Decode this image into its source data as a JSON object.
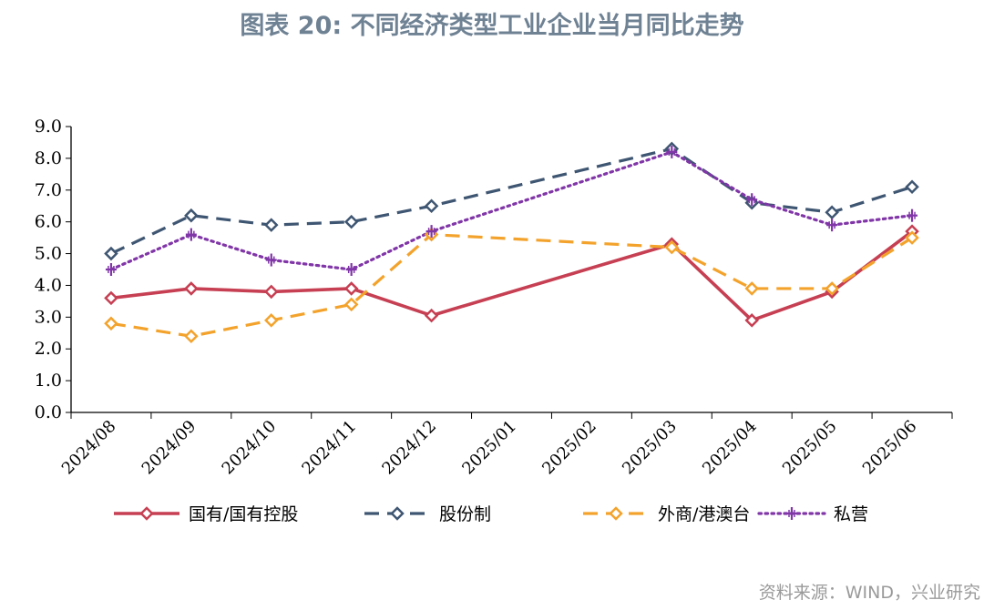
{
  "title": "图表 20: 不同经济类型工业企业当月同比走势",
  "source": "资料来源：WIND，兴业研究",
  "chart_data": {
    "type": "line",
    "categories": [
      "2024/08",
      "2024/09",
      "2024/10",
      "2024/11",
      "2024/12",
      "2025/01",
      "2025/02",
      "2025/03",
      "2025/04",
      "2025/05",
      "2025/06"
    ],
    "yticks": [
      "0.0",
      "1.0",
      "2.0",
      "3.0",
      "4.0",
      "5.0",
      "6.0",
      "7.0",
      "8.0",
      "9.0"
    ],
    "ylim": [
      0,
      9
    ],
    "grid": false,
    "legend_position": "bottom",
    "series": [
      {
        "name": "国有/国有控股",
        "color": "#c63f52",
        "dash": "solid",
        "marker": "diamond",
        "values": [
          3.6,
          3.9,
          3.8,
          3.9,
          3.05,
          null,
          null,
          5.3,
          2.9,
          3.8,
          5.7
        ]
      },
      {
        "name": "股份制",
        "color": "#3f5672",
        "dash": "dashed",
        "marker": "diamond",
        "values": [
          5.0,
          6.2,
          5.9,
          6.0,
          6.5,
          null,
          null,
          8.3,
          6.6,
          6.3,
          7.1
        ]
      },
      {
        "name": "外商/港澳台",
        "color": "#f3a32c",
        "dash": "dashed",
        "marker": "diamond",
        "values": [
          2.8,
          2.4,
          2.9,
          3.4,
          5.6,
          null,
          null,
          5.2,
          3.9,
          3.9,
          5.5
        ]
      },
      {
        "name": "私营",
        "color": "#8136a8",
        "dash": "dotted",
        "marker": "cross",
        "values": [
          4.5,
          5.6,
          4.8,
          4.5,
          5.7,
          null,
          null,
          8.2,
          6.7,
          5.9,
          6.2
        ]
      }
    ]
  }
}
